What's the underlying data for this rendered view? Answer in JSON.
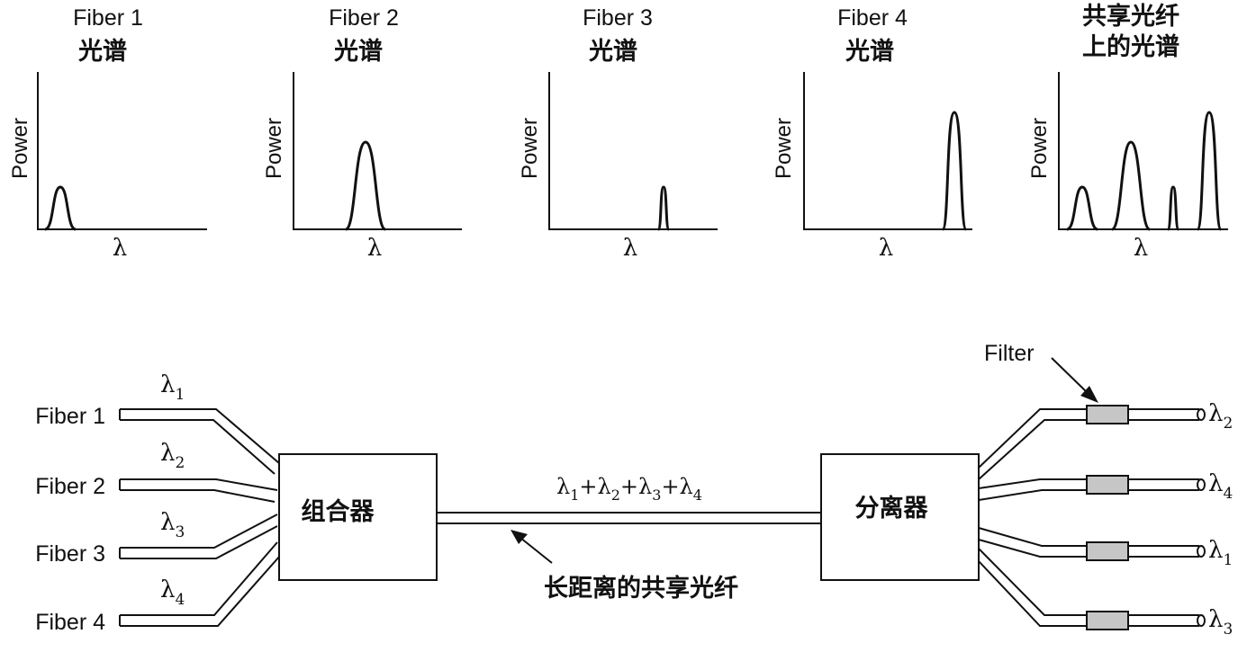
{
  "panels": [
    {
      "title": "Fiber 1",
      "subtitle": "光谱",
      "ylabel": "Power",
      "xlabel": "λ"
    },
    {
      "title": "Fiber 2",
      "subtitle": "光谱",
      "ylabel": "Power",
      "xlabel": "λ"
    },
    {
      "title": "Fiber 3",
      "subtitle": "光谱",
      "ylabel": "Power",
      "xlabel": "λ"
    },
    {
      "title": "Fiber 4",
      "subtitle": "光谱",
      "ylabel": "Power",
      "xlabel": "λ"
    },
    {
      "title": "共享光纤",
      "subtitle": "上的光谱",
      "ylabel": "Power",
      "xlabel": "λ"
    }
  ],
  "inputs": [
    {
      "label": "Fiber 1",
      "lambda": "λ",
      "sub": "1"
    },
    {
      "label": "Fiber 2",
      "lambda": "λ",
      "sub": "2"
    },
    {
      "label": "Fiber 3",
      "lambda": "λ",
      "sub": "3"
    },
    {
      "label": "Fiber 4",
      "lambda": "λ",
      "sub": "4"
    }
  ],
  "combiner": "组合器",
  "splitter": "分离器",
  "trunk_label": "λ1+λ2+λ3+λ4",
  "trunk_caption": "长距离的共享光纤",
  "filter_label": "Filter",
  "outputs": [
    {
      "lambda": "λ",
      "sub": "2"
    },
    {
      "lambda": "λ",
      "sub": "4"
    },
    {
      "lambda": "λ",
      "sub": "1"
    },
    {
      "lambda": "λ",
      "sub": "3"
    }
  ]
}
